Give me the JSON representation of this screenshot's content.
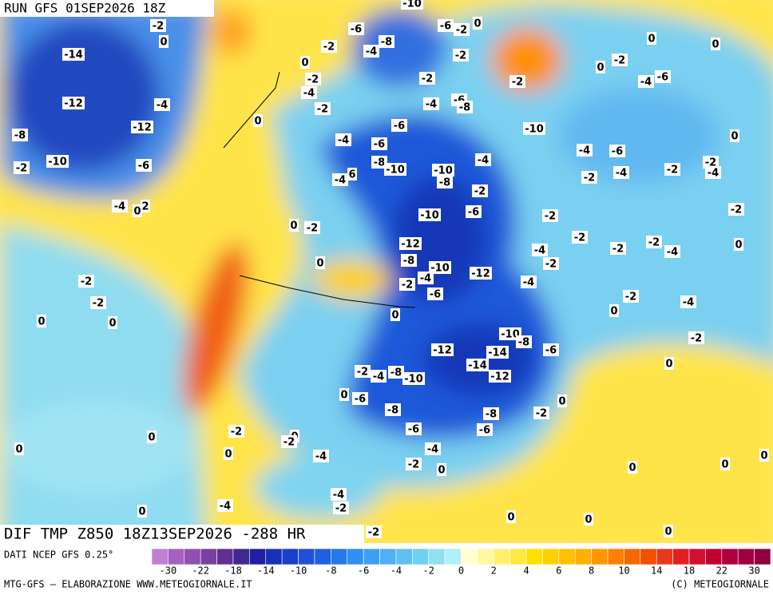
{
  "header": {
    "run": "RUN GFS 01SEP2026 18Z"
  },
  "map": {
    "title": "DIF TMP Z850 18Z13SEP2026 -288 HR",
    "contour_labels": [
      -14,
      -12,
      -8,
      -10,
      -2,
      -6,
      -12,
      -4,
      -2,
      0,
      -4,
      0,
      2,
      -2,
      -2,
      0,
      0,
      0,
      0,
      -2,
      -4,
      -2,
      -2,
      -4,
      -6,
      -8,
      -10,
      -6,
      -2,
      0,
      -2,
      -2,
      -4,
      -6,
      -8,
      -6,
      -10,
      -4,
      -6,
      -8,
      -10,
      -10,
      -8,
      -4,
      -2,
      -4,
      6,
      0,
      -2,
      0,
      -10,
      -6,
      -2,
      -12,
      -8,
      -10,
      -4,
      -2,
      -12,
      -6,
      0,
      -4,
      -2,
      -2,
      -4,
      -2,
      0,
      -2,
      0,
      0,
      -4,
      -6,
      0,
      -4,
      -6,
      -4,
      -2,
      -2,
      -2,
      -4,
      -2,
      -2,
      -4,
      0,
      -2,
      -2,
      0,
      -4,
      -2,
      -6,
      0,
      -10,
      -8,
      -12,
      -14,
      -14,
      -12,
      -10,
      -8,
      -4,
      -2,
      0,
      -6,
      -8,
      -8,
      -2,
      0,
      -6,
      -6,
      -4,
      -2,
      -4,
      -2,
      0,
      -2,
      0,
      0,
      0,
      0,
      0,
      0,
      0,
      -4,
      -2,
      -4,
      0,
      0,
      0,
      0,
      -2
    ]
  },
  "legend": {
    "source": "DATI NCEP GFS 0.25°",
    "labels": [
      -30,
      -22,
      -18,
      -14,
      -10,
      -8,
      -6,
      -4,
      -2,
      0,
      2,
      4,
      6,
      8,
      10,
      14,
      18,
      22,
      30
    ],
    "colors": [
      "#c080d0",
      "#a860c0",
      "#9050b0",
      "#7840a0",
      "#603090",
      "#402890",
      "#2020a0",
      "#1830b8",
      "#1840c8",
      "#2050d8",
      "#2060e0",
      "#2878e8",
      "#3090f0",
      "#40a0f0",
      "#50b0f0",
      "#60c0f0",
      "#70d0f0",
      "#90e0f0",
      "#b0f0f8",
      "#ffffd0",
      "#fff8a0",
      "#fff070",
      "#ffe840",
      "#ffe000",
      "#ffd000",
      "#ffc000",
      "#ffb000",
      "#ff9800",
      "#ff8000",
      "#f86800",
      "#f05000",
      "#e83820",
      "#e02020",
      "#d01030",
      "#c00030",
      "#b00040",
      "#a00040",
      "#900040"
    ]
  },
  "footer": {
    "credit": "MTG-GFS — ELABORAZIONE WWW.METEOGIORNALE.IT",
    "copyright": "(C) METEOGIORNALE"
  }
}
